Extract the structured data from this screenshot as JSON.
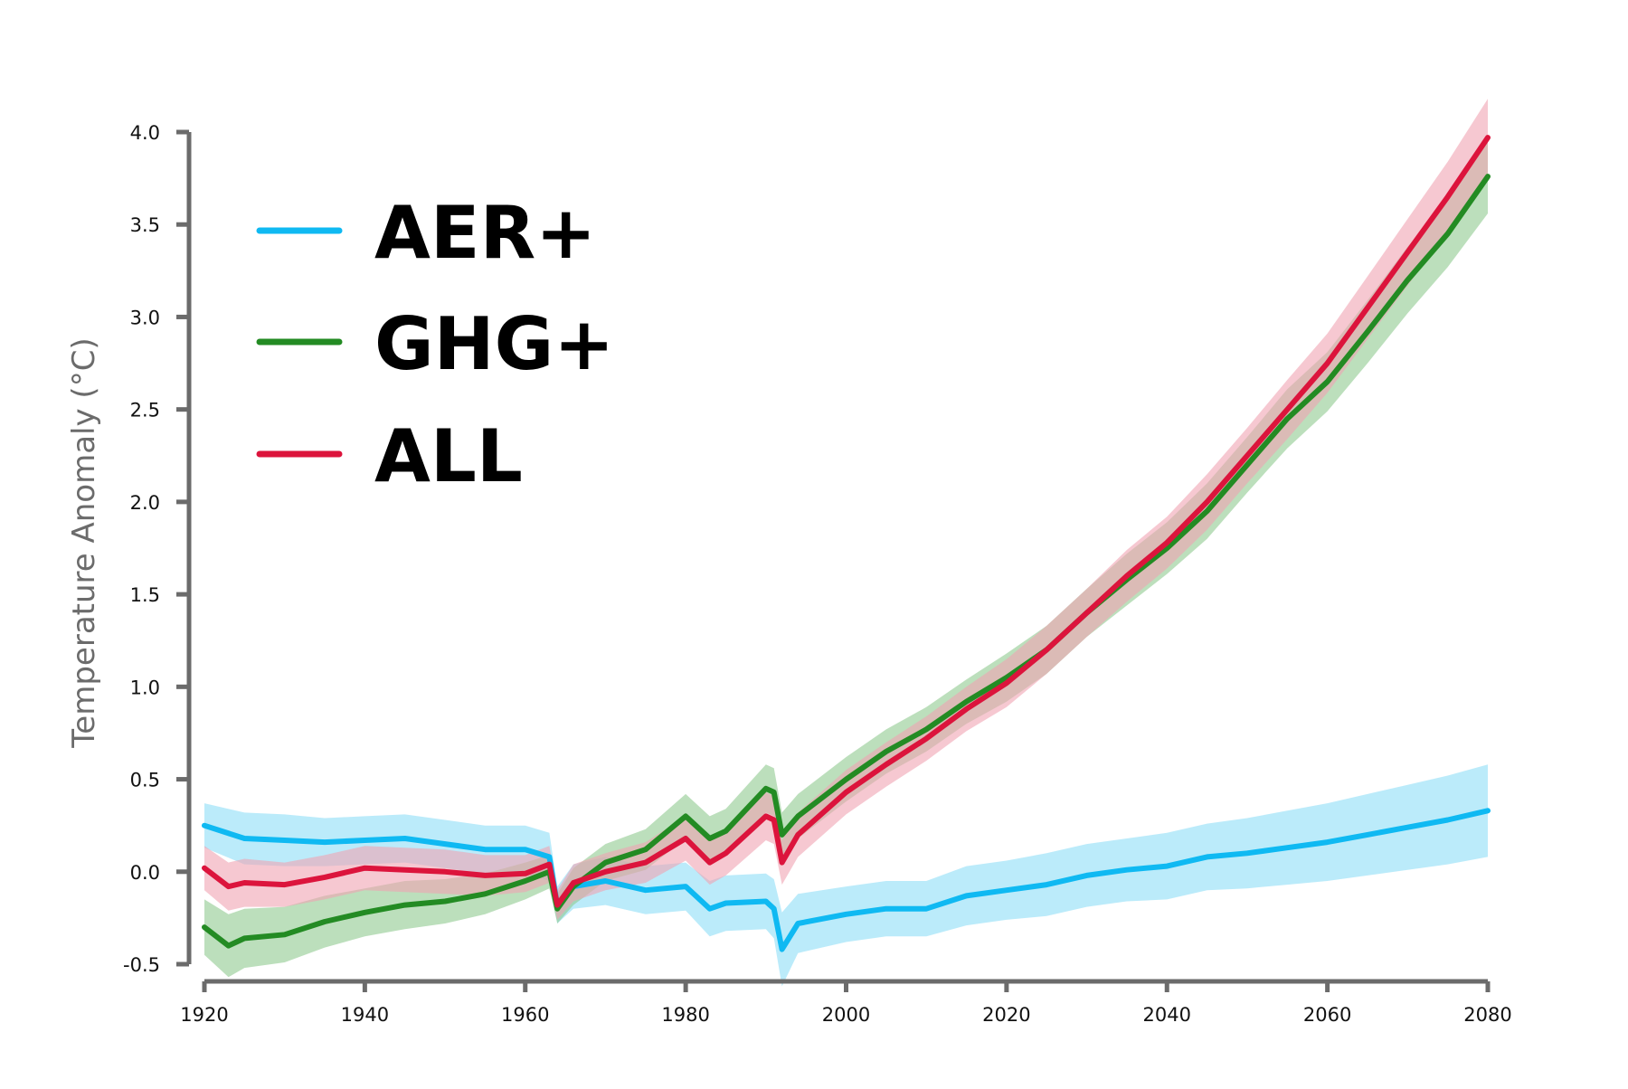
{
  "chart_data": {
    "type": "line",
    "ylabel": "Temperature Anomaly (°C)",
    "xlabel": "",
    "xlim": [
      1920,
      2080
    ],
    "ylim": [
      -0.5,
      4.0
    ],
    "x_ticks": [
      1920,
      1940,
      1960,
      1980,
      2000,
      2020,
      2040,
      2060,
      2080
    ],
    "y_ticks": [
      -0.5,
      0.0,
      0.5,
      1.0,
      1.5,
      2.0,
      2.5,
      3.0,
      3.5,
      4.0
    ],
    "x_tick_labels": [
      "1920",
      "1940",
      "1960",
      "1980",
      "2000",
      "2020",
      "2040",
      "2060",
      "2080"
    ],
    "y_tick_labels": [
      "-0.5",
      "0.0",
      "0.5",
      "1.0",
      "1.5",
      "2.0",
      "2.5",
      "3.0",
      "3.5",
      "4.0"
    ],
    "grid": false,
    "legend_position": "top-left",
    "shaded_bands": true,
    "series": [
      {
        "name": "AER+",
        "color": "#0FB9F2",
        "band_color": "#8EDDF7",
        "x": [
          1920,
          1925,
          1930,
          1935,
          1940,
          1945,
          1950,
          1955,
          1960,
          1963,
          1964,
          1966,
          1970,
          1975,
          1980,
          1983,
          1985,
          1990,
          1991,
          1992,
          1994,
          2000,
          2005,
          2010,
          2015,
          2020,
          2025,
          2030,
          2035,
          2040,
          2045,
          2050,
          2055,
          2060,
          2065,
          2070,
          2075,
          2080
        ],
        "y": [
          0.25,
          0.18,
          0.17,
          0.16,
          0.17,
          0.18,
          0.15,
          0.12,
          0.12,
          0.08,
          -0.18,
          -0.08,
          -0.05,
          -0.1,
          -0.08,
          -0.2,
          -0.17,
          -0.16,
          -0.2,
          -0.42,
          -0.28,
          -0.23,
          -0.2,
          -0.2,
          -0.13,
          -0.1,
          -0.07,
          -0.02,
          0.01,
          0.03,
          0.08,
          0.1,
          0.13,
          0.16,
          0.2,
          0.24,
          0.28,
          0.33
        ],
        "band_halfwidth": [
          0.12,
          0.14,
          0.14,
          0.13,
          0.13,
          0.13,
          0.13,
          0.13,
          0.13,
          0.13,
          0.1,
          0.12,
          0.13,
          0.13,
          0.13,
          0.15,
          0.15,
          0.15,
          0.16,
          0.2,
          0.16,
          0.15,
          0.15,
          0.15,
          0.16,
          0.16,
          0.17,
          0.17,
          0.17,
          0.18,
          0.18,
          0.19,
          0.2,
          0.21,
          0.22,
          0.23,
          0.24,
          0.25
        ]
      },
      {
        "name": "GHG+",
        "color": "#238B23",
        "band_color": "#8FC98F",
        "x": [
          1920,
          1923,
          1925,
          1930,
          1935,
          1940,
          1945,
          1950,
          1955,
          1960,
          1963,
          1964,
          1966,
          1970,
          1975,
          1980,
          1983,
          1985,
          1990,
          1991,
          1992,
          1994,
          2000,
          2005,
          2010,
          2015,
          2020,
          2025,
          2030,
          2035,
          2040,
          2045,
          2050,
          2055,
          2060,
          2065,
          2070,
          2075,
          2080
        ],
        "y": [
          -0.3,
          -0.4,
          -0.36,
          -0.34,
          -0.27,
          -0.22,
          -0.18,
          -0.16,
          -0.12,
          -0.05,
          0.0,
          -0.2,
          -0.08,
          0.05,
          0.12,
          0.3,
          0.18,
          0.22,
          0.45,
          0.43,
          0.2,
          0.3,
          0.5,
          0.65,
          0.77,
          0.92,
          1.05,
          1.2,
          1.4,
          1.58,
          1.75,
          1.95,
          2.2,
          2.45,
          2.65,
          2.92,
          3.2,
          3.45,
          3.76
        ],
        "band_halfwidth": [
          0.15,
          0.17,
          0.16,
          0.15,
          0.14,
          0.13,
          0.13,
          0.12,
          0.11,
          0.1,
          0.09,
          0.08,
          0.1,
          0.1,
          0.11,
          0.12,
          0.12,
          0.12,
          0.13,
          0.13,
          0.12,
          0.12,
          0.12,
          0.12,
          0.12,
          0.12,
          0.13,
          0.13,
          0.13,
          0.14,
          0.14,
          0.15,
          0.15,
          0.16,
          0.16,
          0.17,
          0.18,
          0.18,
          0.2
        ]
      },
      {
        "name": "ALL",
        "color": "#DC143C",
        "band_color": "#F0A3B3",
        "x": [
          1920,
          1923,
          1925,
          1930,
          1935,
          1940,
          1945,
          1950,
          1955,
          1960,
          1963,
          1964,
          1966,
          1970,
          1975,
          1980,
          1983,
          1985,
          1990,
          1991,
          1992,
          1994,
          2000,
          2005,
          2010,
          2015,
          2020,
          2025,
          2030,
          2035,
          2040,
          2045,
          2050,
          2055,
          2060,
          2065,
          2070,
          2075,
          2080
        ],
        "y": [
          0.02,
          -0.08,
          -0.06,
          -0.07,
          -0.03,
          0.02,
          0.01,
          0.0,
          -0.02,
          -0.01,
          0.04,
          -0.18,
          -0.06,
          0.0,
          0.05,
          0.18,
          0.05,
          0.1,
          0.3,
          0.28,
          0.05,
          0.2,
          0.43,
          0.58,
          0.72,
          0.88,
          1.02,
          1.2,
          1.4,
          1.6,
          1.78,
          2.0,
          2.25,
          2.5,
          2.75,
          3.05,
          3.35,
          3.65,
          3.97
        ],
        "band_halfwidth": [
          0.12,
          0.13,
          0.13,
          0.12,
          0.12,
          0.12,
          0.12,
          0.12,
          0.11,
          0.1,
          0.1,
          0.08,
          0.1,
          0.1,
          0.11,
          0.12,
          0.12,
          0.12,
          0.13,
          0.13,
          0.12,
          0.12,
          0.12,
          0.12,
          0.12,
          0.12,
          0.13,
          0.13,
          0.13,
          0.14,
          0.14,
          0.15,
          0.15,
          0.16,
          0.16,
          0.17,
          0.18,
          0.19,
          0.21
        ]
      }
    ]
  }
}
